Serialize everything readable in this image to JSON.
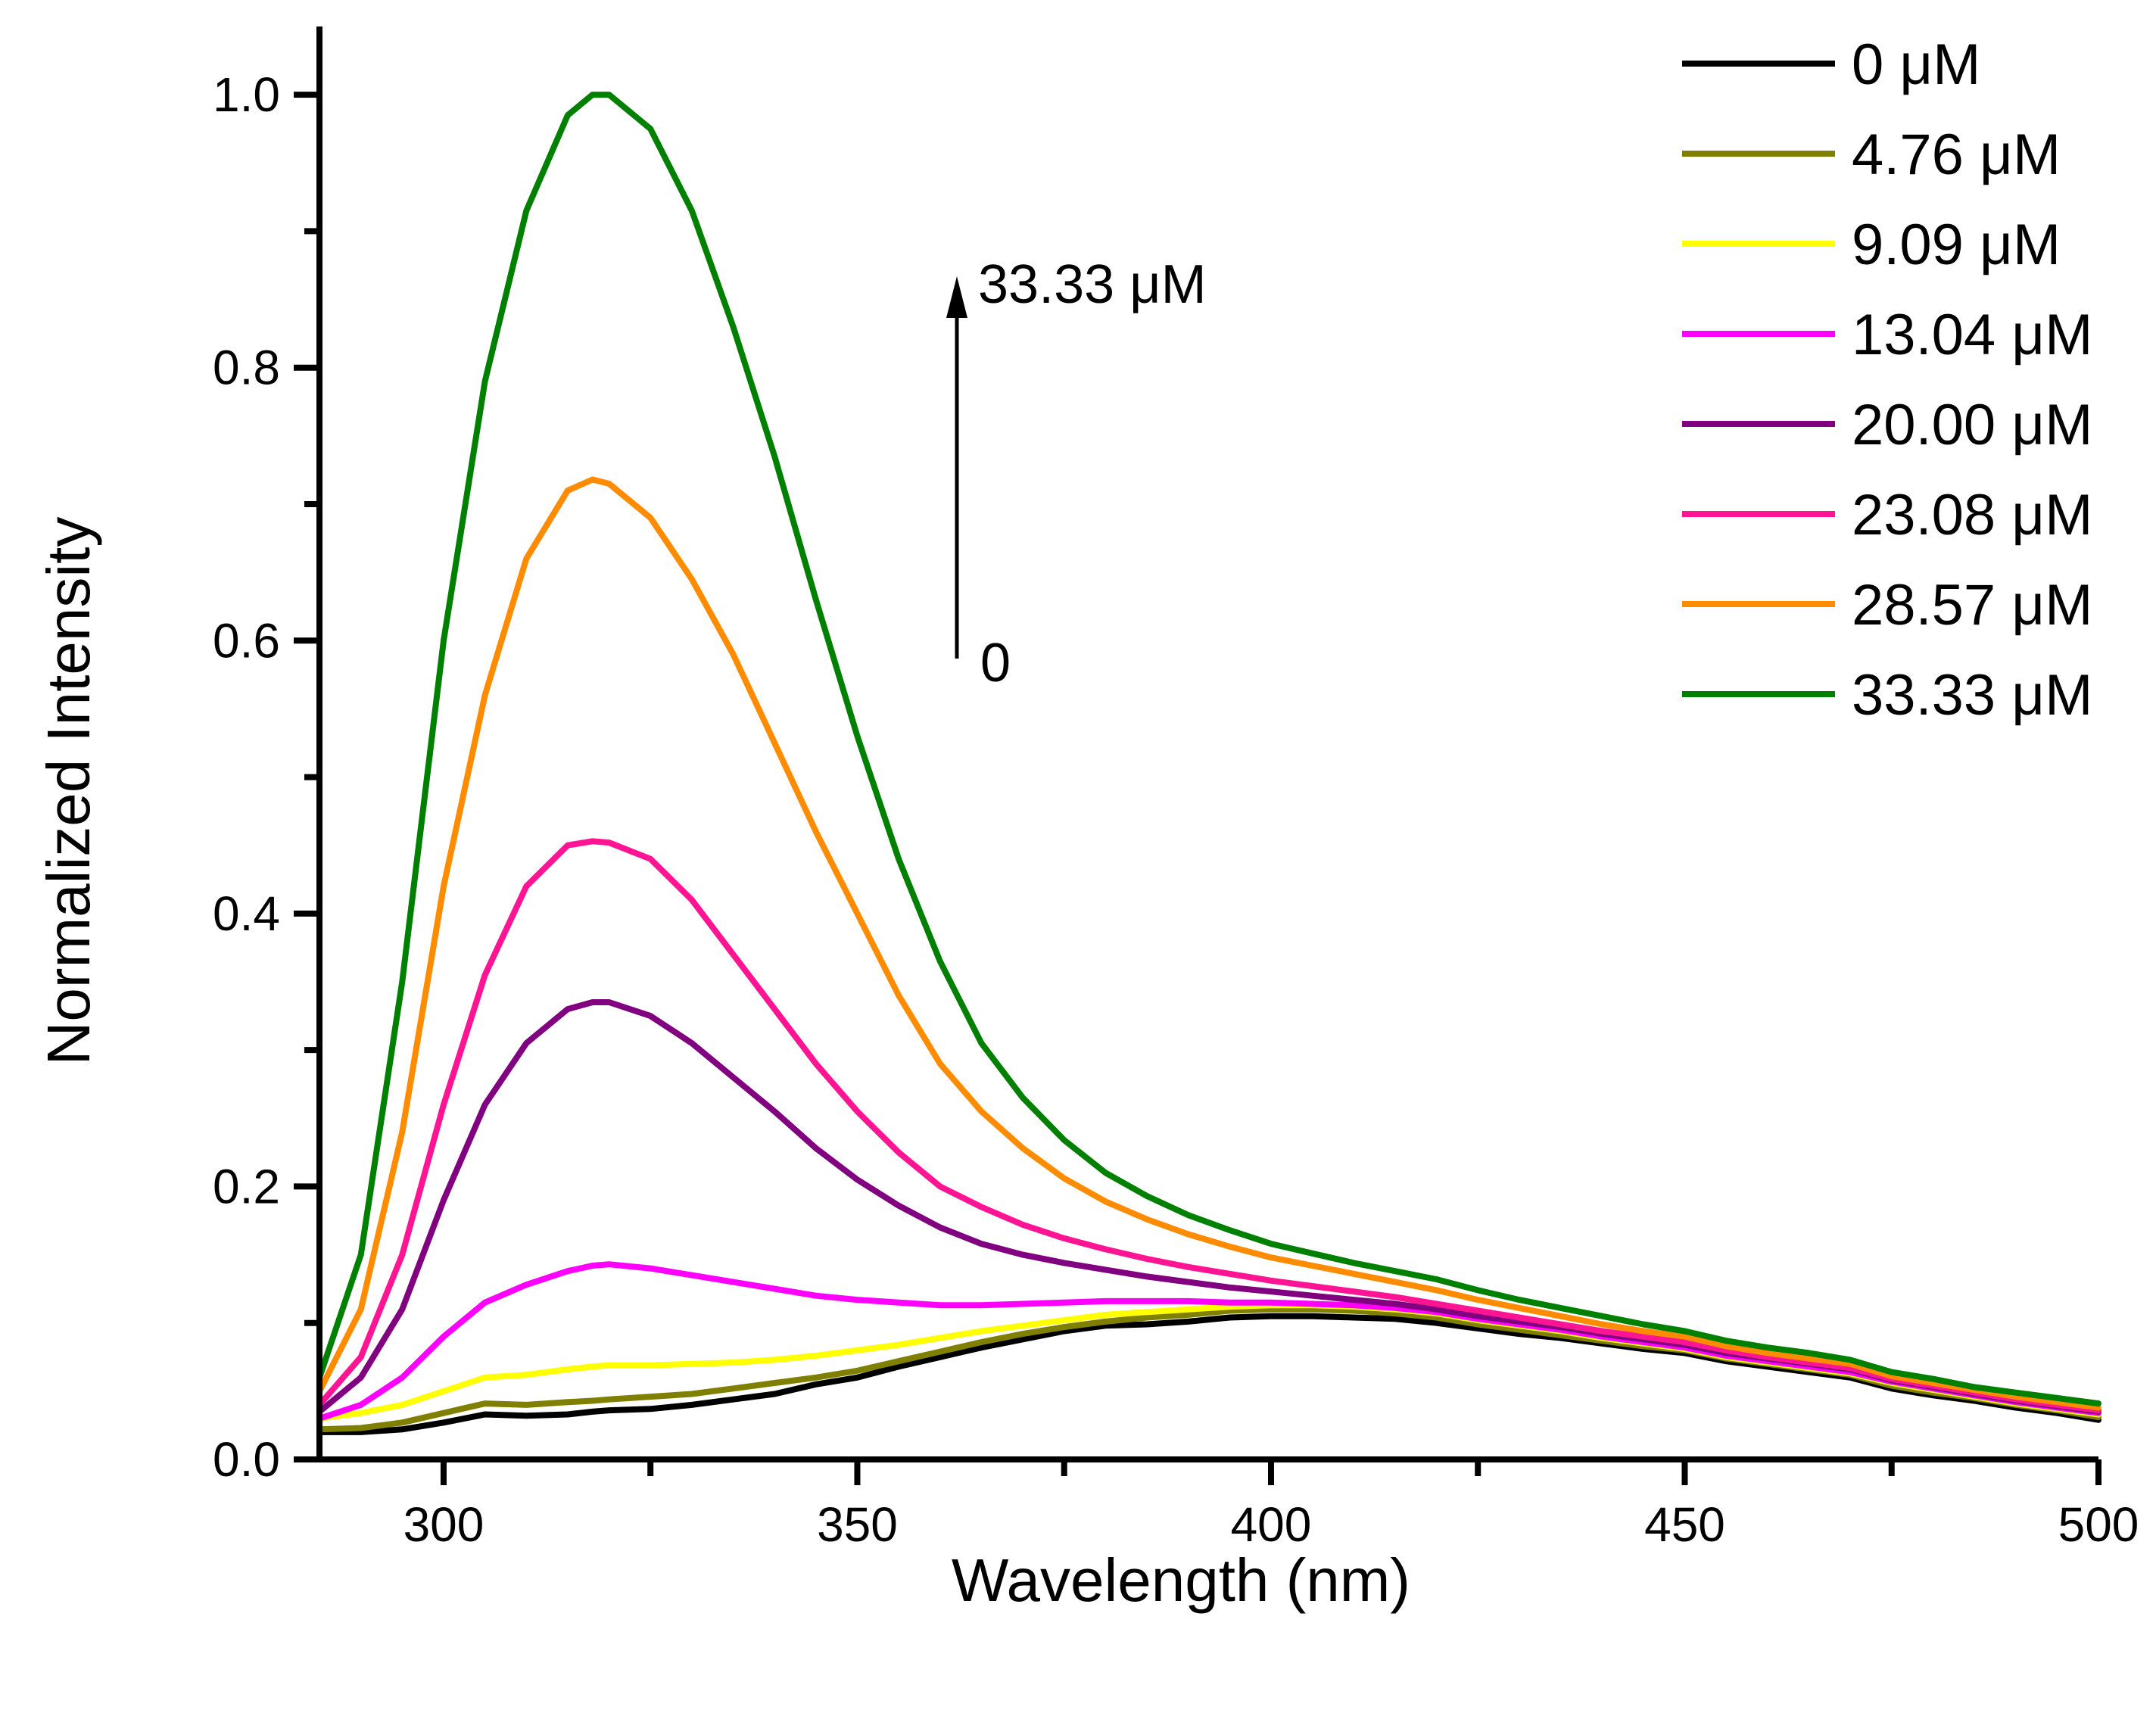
{
  "chart_data": {
    "type": "line",
    "title": "",
    "xlabel": "Wavelength (nm)",
    "ylabel": "Normalized Intensity",
    "xlim": [
      285,
      500
    ],
    "ylim": [
      0,
      1.05
    ],
    "xticks": [
      300,
      350,
      400,
      450,
      500
    ],
    "yticks": [
      0.0,
      0.2,
      0.4,
      0.6,
      0.8,
      1.0
    ],
    "xtick_labels": [
      "300",
      "350",
      "400",
      "450",
      "500"
    ],
    "ytick_labels": [
      "0.0",
      "0.2",
      "0.4",
      "0.6",
      "0.8",
      "1.0"
    ],
    "legend_position": "top-right",
    "x": [
      285,
      290,
      295,
      300,
      305,
      310,
      315,
      318,
      320,
      325,
      330,
      335,
      340,
      345,
      350,
      355,
      360,
      365,
      370,
      375,
      380,
      385,
      390,
      395,
      400,
      405,
      410,
      415,
      420,
      425,
      430,
      435,
      440,
      445,
      450,
      455,
      460,
      465,
      470,
      475,
      480,
      485,
      490,
      495,
      500
    ],
    "series": [
      {
        "name": "0 μM",
        "color": "#000000",
        "values": [
          0.02,
          0.02,
          0.022,
          0.027,
          0.033,
          0.032,
          0.033,
          0.035,
          0.036,
          0.037,
          0.04,
          0.044,
          0.048,
          0.055,
          0.06,
          0.068,
          0.075,
          0.082,
          0.088,
          0.094,
          0.098,
          0.099,
          0.101,
          0.104,
          0.105,
          0.105,
          0.104,
          0.103,
          0.1,
          0.096,
          0.092,
          0.089,
          0.085,
          0.081,
          0.078,
          0.072,
          0.068,
          0.064,
          0.06,
          0.052,
          0.047,
          0.043,
          0.038,
          0.034,
          0.029
        ]
      },
      {
        "name": "4.76 μM",
        "color": "#808000",
        "values": [
          0.022,
          0.023,
          0.027,
          0.034,
          0.041,
          0.04,
          0.042,
          0.043,
          0.044,
          0.046,
          0.048,
          0.052,
          0.056,
          0.06,
          0.065,
          0.072,
          0.079,
          0.086,
          0.092,
          0.097,
          0.101,
          0.104,
          0.106,
          0.109,
          0.11,
          0.11,
          0.109,
          0.107,
          0.104,
          0.099,
          0.095,
          0.091,
          0.087,
          0.083,
          0.08,
          0.074,
          0.07,
          0.066,
          0.062,
          0.054,
          0.049,
          0.045,
          0.04,
          0.036,
          0.031
        ]
      },
      {
        "name": "9.09 μM",
        "color": "#FFFF00",
        "values": [
          0.03,
          0.034,
          0.04,
          0.05,
          0.06,
          0.062,
          0.066,
          0.068,
          0.069,
          0.069,
          0.07,
          0.071,
          0.073,
          0.076,
          0.08,
          0.084,
          0.089,
          0.094,
          0.098,
          0.102,
          0.106,
          0.108,
          0.11,
          0.112,
          0.113,
          0.113,
          0.112,
          0.11,
          0.107,
          0.102,
          0.098,
          0.094,
          0.089,
          0.085,
          0.081,
          0.075,
          0.071,
          0.067,
          0.063,
          0.056,
          0.051,
          0.046,
          0.041,
          0.037,
          0.033
        ]
      },
      {
        "name": "13.04 μM",
        "color": "#FF00FF",
        "values": [
          0.03,
          0.04,
          0.06,
          0.09,
          0.115,
          0.128,
          0.138,
          0.142,
          0.143,
          0.14,
          0.135,
          0.13,
          0.125,
          0.12,
          0.117,
          0.115,
          0.113,
          0.113,
          0.114,
          0.115,
          0.116,
          0.116,
          0.116,
          0.115,
          0.115,
          0.114,
          0.113,
          0.111,
          0.108,
          0.103,
          0.099,
          0.095,
          0.09,
          0.086,
          0.082,
          0.076,
          0.072,
          0.068,
          0.064,
          0.057,
          0.052,
          0.047,
          0.042,
          0.038,
          0.034
        ]
      },
      {
        "name": "20.00 μM",
        "color": "#800080",
        "values": [
          0.035,
          0.06,
          0.11,
          0.19,
          0.26,
          0.305,
          0.33,
          0.335,
          0.335,
          0.325,
          0.305,
          0.28,
          0.255,
          0.228,
          0.205,
          0.186,
          0.17,
          0.158,
          0.15,
          0.144,
          0.139,
          0.134,
          0.13,
          0.126,
          0.123,
          0.12,
          0.117,
          0.114,
          0.11,
          0.105,
          0.101,
          0.097,
          0.092,
          0.088,
          0.084,
          0.078,
          0.074,
          0.07,
          0.066,
          0.058,
          0.053,
          0.048,
          0.043,
          0.039,
          0.035
        ]
      },
      {
        "name": "23.08 μM",
        "color": "#FF1493",
        "values": [
          0.04,
          0.075,
          0.15,
          0.26,
          0.355,
          0.42,
          0.45,
          0.453,
          0.452,
          0.44,
          0.41,
          0.37,
          0.33,
          0.29,
          0.255,
          0.225,
          0.2,
          0.185,
          0.172,
          0.162,
          0.154,
          0.147,
          0.141,
          0.136,
          0.131,
          0.127,
          0.123,
          0.119,
          0.114,
          0.109,
          0.104,
          0.099,
          0.094,
          0.09,
          0.086,
          0.08,
          0.075,
          0.071,
          0.067,
          0.059,
          0.054,
          0.049,
          0.044,
          0.04,
          0.036
        ]
      },
      {
        "name": "28.57 μM",
        "color": "#FF8C00",
        "values": [
          0.05,
          0.11,
          0.24,
          0.42,
          0.56,
          0.66,
          0.71,
          0.718,
          0.715,
          0.69,
          0.645,
          0.59,
          0.525,
          0.46,
          0.4,
          0.34,
          0.29,
          0.255,
          0.228,
          0.206,
          0.189,
          0.176,
          0.165,
          0.156,
          0.148,
          0.142,
          0.136,
          0.13,
          0.124,
          0.117,
          0.111,
          0.105,
          0.099,
          0.094,
          0.09,
          0.083,
          0.078,
          0.074,
          0.07,
          0.061,
          0.056,
          0.051,
          0.046,
          0.042,
          0.038
        ]
      },
      {
        "name": "33.33 μM",
        "color": "#008000",
        "values": [
          0.06,
          0.15,
          0.35,
          0.6,
          0.79,
          0.915,
          0.985,
          1.0,
          1.0,
          0.975,
          0.915,
          0.83,
          0.735,
          0.63,
          0.53,
          0.44,
          0.365,
          0.305,
          0.265,
          0.234,
          0.21,
          0.193,
          0.179,
          0.168,
          0.158,
          0.151,
          0.144,
          0.138,
          0.132,
          0.124,
          0.117,
          0.111,
          0.105,
          0.099,
          0.094,
          0.087,
          0.082,
          0.078,
          0.073,
          0.064,
          0.059,
          0.053,
          0.049,
          0.045,
          0.041
        ]
      }
    ],
    "annotations": [
      {
        "text": "33.33 μM",
        "at": "arrow-head"
      },
      {
        "text": "0",
        "at": "arrow-tail"
      }
    ]
  }
}
